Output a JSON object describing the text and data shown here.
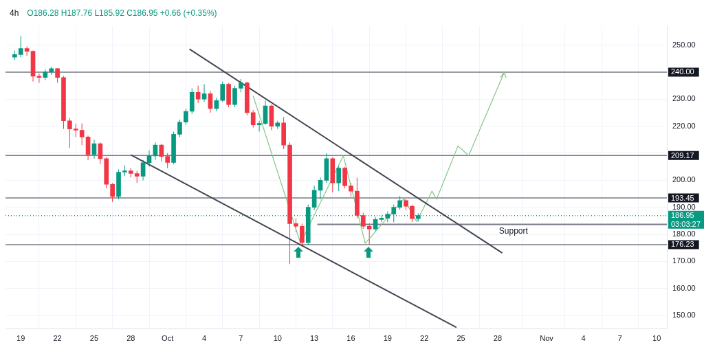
{
  "chart_data": {
    "type": "candlestick",
    "title": "4h",
    "annotations": [
      "O186.28 H187.76 L185.92 C186.95 +0.66 (+0.35%)"
    ],
    "x": [
      "--09-18T12:00",
      "--09-19T00:00",
      "--09-19T12:00",
      "--09-20T00:00",
      "--09-20T12:00",
      "--09-21T00:00",
      "--09-21T12:00",
      "--09-22T00:00",
      "--09-22T12:00",
      "--09-23T00:00",
      "--09-23T12:00",
      "--09-24T00:00",
      "--09-24T12:00",
      "--09-25T00:00",
      "--09-25T12:00",
      "--09-26T00:00",
      "--09-26T12:00",
      "--09-27T00:00",
      "--09-27T12:00",
      "--09-28T00:00",
      "--09-28T12:00",
      "--09-29T00:00",
      "--09-29T12:00",
      "--09-30T00:00",
      "--09-30T12:00",
      "--10-01T00:00",
      "--10-01T12:00",
      "--10-02T00:00",
      "--10-02T12:00",
      "--10-03T00:00",
      "--10-03T12:00",
      "--10-04T00:00",
      "--10-04T12:00",
      "--10-05T00:00",
      "--10-05T12:00",
      "--10-06T00:00",
      "--10-06T12:00",
      "--10-07T00:00",
      "--10-07T12:00",
      "--10-08T00:00",
      "--10-08T12:00",
      "--10-09T00:00",
      "--10-09T12:00",
      "--10-10T00:00",
      "--10-10T12:00",
      "--10-11T00:00",
      "--10-11T12:00",
      "--10-12T00:00",
      "--10-12T12:00",
      "--10-13T00:00",
      "--10-13T12:00",
      "--10-14T00:00",
      "--10-14T12:00",
      "--10-15T00:00",
      "--10-15T12:00",
      "--10-16T00:00",
      "--10-16T12:00",
      "--10-17T00:00",
      "--10-17T12:00",
      "--10-18T00:00",
      "--10-18T12:00",
      "--10-19T00:00",
      "--10-19T12:00",
      "--10-20T00:00",
      "--10-20T12:00",
      "--10-21T00:00",
      "--10-21T12:00"
    ],
    "ohlc": [
      [
        245.5,
        248,
        244.5,
        246.5
      ],
      [
        246.5,
        253.3,
        245.5,
        248.7
      ],
      [
        248.7,
        249.5,
        246,
        247.7
      ],
      [
        247.7,
        248,
        236.5,
        238.5
      ],
      [
        238.5,
        239.5,
        236,
        238
      ],
      [
        238,
        241,
        237,
        240
      ],
      [
        240,
        242,
        239,
        241.3
      ],
      [
        241.3,
        241.5,
        236,
        238
      ],
      [
        238,
        238.5,
        219,
        222
      ],
      [
        222,
        223,
        212,
        219
      ],
      [
        219,
        221,
        216,
        218.5
      ],
      [
        218.5,
        221,
        213,
        216
      ],
      [
        216,
        216.5,
        207.5,
        209.5
      ],
      [
        209.5,
        215,
        208,
        213.5
      ],
      [
        213.5,
        214,
        206,
        208
      ],
      [
        208,
        208.5,
        197,
        198.5
      ],
      [
        198.5,
        199,
        192,
        194
      ],
      [
        194,
        204,
        193,
        203
      ],
      [
        203,
        205.5,
        201.5,
        203.5
      ],
      [
        203.5,
        204.5,
        201,
        202.5
      ],
      [
        202.5,
        203.5,
        199,
        201.5
      ],
      [
        201.5,
        207.5,
        200,
        206.5
      ],
      [
        206.5,
        211,
        205,
        209
      ],
      [
        209,
        214,
        207.5,
        213
      ],
      [
        213,
        213.5,
        207,
        208.8
      ],
      [
        208.8,
        210,
        204.5,
        206.6
      ],
      [
        206.6,
        218,
        206,
        217
      ],
      [
        217,
        222.5,
        216,
        221.5
      ],
      [
        221.5,
        226.5,
        220.5,
        225.5
      ],
      [
        225.5,
        234,
        224.5,
        232.5
      ],
      [
        232.5,
        235,
        228.5,
        230
      ],
      [
        230,
        235.5,
        229,
        232
      ],
      [
        232,
        233,
        225,
        226.5
      ],
      [
        226.5,
        230.5,
        225.5,
        229.5
      ],
      [
        229.5,
        236.5,
        229,
        235.5
      ],
      [
        235.5,
        236,
        227,
        228
      ],
      [
        228,
        235,
        227,
        234
      ],
      [
        234,
        237.4,
        232.5,
        236
      ],
      [
        236,
        236.5,
        224,
        225
      ],
      [
        225,
        226,
        219.5,
        220.5
      ],
      [
        220.5,
        222,
        218,
        221
      ],
      [
        221,
        229.5,
        220.5,
        227.5
      ],
      [
        227.5,
        228,
        218.5,
        220
      ],
      [
        220,
        222,
        219,
        221.2
      ],
      [
        221.2,
        223.4,
        211.5,
        213
      ],
      [
        213,
        214,
        169,
        184
      ],
      [
        184,
        186,
        181,
        183
      ],
      [
        183,
        184,
        175.5,
        177
      ],
      [
        177,
        191,
        176,
        190
      ],
      [
        190,
        198,
        189,
        196.3
      ],
      [
        196.3,
        201,
        193,
        200
      ],
      [
        200,
        210,
        199,
        208
      ],
      [
        208,
        208.5,
        195.5,
        199
      ],
      [
        199,
        205.5,
        196,
        204.5
      ],
      [
        204.5,
        205,
        197,
        198
      ],
      [
        198,
        199,
        194,
        196
      ],
      [
        196,
        201,
        186,
        187
      ],
      [
        187,
        188,
        182,
        183
      ],
      [
        183,
        184,
        176.3,
        182
      ],
      [
        182,
        186.5,
        181,
        185.5
      ],
      [
        185.5,
        187,
        184.5,
        186
      ],
      [
        186,
        188.5,
        184.5,
        187.5
      ],
      [
        187.5,
        191,
        184.5,
        190
      ],
      [
        190,
        194.2,
        189,
        192.5
      ],
      [
        192.5,
        193,
        189,
        190.4
      ],
      [
        190.4,
        191,
        184.5,
        185.8
      ],
      [
        185.8,
        187.8,
        184.8,
        186.95
      ]
    ],
    "colors": [
      "#089981",
      "#089981",
      "#f23645",
      "#f23645",
      "#f23645",
      "#089981",
      "#089981",
      "#f23645",
      "#f23645",
      "#f23645",
      "#f23645",
      "#f23645",
      "#f23645",
      "#089981",
      "#f23645",
      "#f23645",
      "#f23645",
      "#089981",
      "#089981",
      "#f23645",
      "#f23645",
      "#089981",
      "#089981",
      "#089981",
      "#f23645",
      "#f23645",
      "#089981",
      "#089981",
      "#089981",
      "#089981",
      "#f23645",
      "#089981",
      "#f23645",
      "#089981",
      "#089981",
      "#f23645",
      "#089981",
      "#089981",
      "#f23645",
      "#f23645",
      "#089981",
      "#089981",
      "#f23645",
      "#089981",
      "#f23645",
      "#f23645",
      "#f23645",
      "#f23645",
      "#089981",
      "#089981",
      "#089981",
      "#089981",
      "#f23645",
      "#089981",
      "#f23645",
      "#f23645",
      "#f23645",
      "#f23645",
      "#f23645",
      "#089981",
      "#089981",
      "#089981",
      "#089981",
      "#089981",
      "#f23645",
      "#f23645",
      "#089981"
    ],
    "series": [
      {
        "type": "line",
        "color": "#434651",
        "x": [
          "--10-02T19:00",
          "--10-28T09:00"
        ],
        "values": [
          248.5,
          173.1
        ]
      },
      {
        "type": "line",
        "color": "#434651",
        "x": [
          "--09-28T00:00",
          "--10-24T15:00"
        ],
        "values": [
          209.4,
          145.6
        ]
      },
      {
        "type": "line",
        "color": "#81c784",
        "x": [
          "--10-08T00:00",
          "--10-11T21:00",
          "--10-15T09:00",
          "--10-17T04:00",
          "--10-20T08:00",
          "--10-21T09:00",
          "--10-22T15:00",
          "--10-23T00:00",
          "--10-24T18:00",
          "--10-25T15:00",
          "--10-28T13:00"
        ],
        "values": [
          231.2,
          176.7,
          209.1,
          176.7,
          193.2,
          184.7,
          196,
          193,
          212.7,
          209.1,
          240
        ]
      },
      {
        "type": "line",
        "name": "Support",
        "color": "#787b86",
        "x": [
          "--10-13T06:00",
          "--11-10T20:00"
        ],
        "values": [
          183.7,
          183.7
        ]
      }
    ],
    "ref_lines": [
      {
        "axis": "y",
        "value": 240,
        "label": "240.00",
        "color": "#787b86"
      },
      {
        "axis": "y",
        "value": 209.17,
        "label": "209.17",
        "color": "#787b86"
      },
      {
        "axis": "y",
        "value": 193.45,
        "label": "193.45",
        "color": "#787b86"
      },
      {
        "axis": "y",
        "value": 176.23,
        "label": "176.23",
        "color": "#787b86"
      },
      {
        "axis": "y",
        "value": 186.95,
        "label": "186.95\n03:03:27",
        "color": "#089981",
        "line_style": "dotted"
      }
    ],
    "xlim": [
      "--09-17T18:00",
      "--11-10T20:00"
    ],
    "xticks": [
      {
        "value": "--09-19",
        "label": "19"
      },
      {
        "value": "--09-22",
        "label": "22"
      },
      {
        "value": "--09-25",
        "label": "25"
      },
      {
        "value": "--09-28",
        "label": "28"
      },
      {
        "value": "--10-01",
        "label": "Oct"
      },
      {
        "value": "--10-04",
        "label": "4"
      },
      {
        "value": "--10-07",
        "label": "7"
      },
      {
        "value": "--10-10",
        "label": "10"
      },
      {
        "value": "--10-13",
        "label": "13"
      },
      {
        "value": "--10-16",
        "label": "16"
      },
      {
        "value": "--10-19",
        "label": "19"
      },
      {
        "value": "--10-22",
        "label": "22"
      },
      {
        "value": "--10-25",
        "label": "25"
      },
      {
        "value": "--10-28",
        "label": "28"
      },
      {
        "value": "--11-01",
        "label": "Nov"
      },
      {
        "value": "--11-04",
        "label": "4"
      },
      {
        "value": "--11-07",
        "label": "7"
      },
      {
        "value": "--11-10",
        "label": "10"
      }
    ],
    "ylim": [
      145,
      257
    ],
    "yticks": [
      {
        "value": 150,
        "label": "150.00"
      },
      {
        "value": 160,
        "label": "160.00"
      },
      {
        "value": 170,
        "label": "170.00"
      },
      {
        "value": 180,
        "label": "180.00"
      },
      {
        "value": 190,
        "label": "190.00"
      },
      {
        "value": 200,
        "label": "200.00"
      },
      {
        "value": 210,
        "label": null
      },
      {
        "value": 220,
        "label": "220.00"
      },
      {
        "value": 230,
        "label": "230.00"
      },
      {
        "value": 240,
        "label": null
      },
      {
        "value": 250,
        "label": "250.00"
      }
    ],
    "grid": true,
    "legend": false
  }
}
